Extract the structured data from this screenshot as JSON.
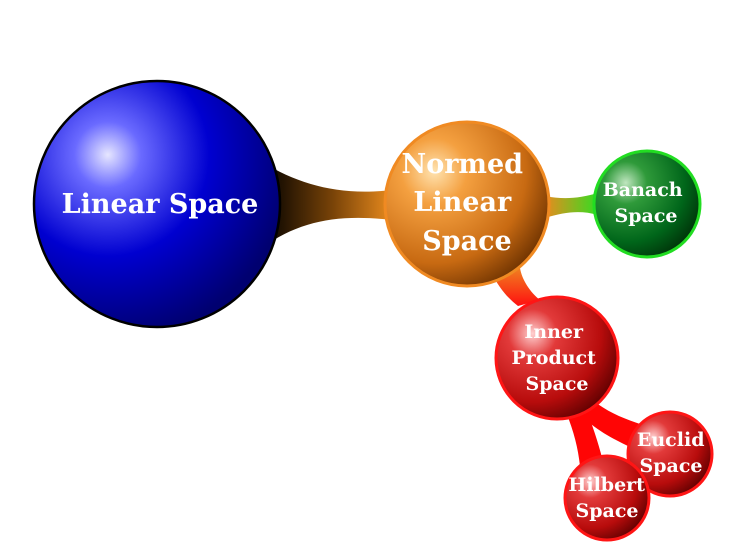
{
  "colors": {
    "linear": "#0000c8",
    "normed": "#e07a10",
    "banach": "#006b1f",
    "banach_ring": "#22dd22",
    "inner": "#cc1111",
    "connector_dark": "#1a1000",
    "connector_red": "#ff0000",
    "connector_green": "#55dd22"
  },
  "nodes": {
    "linear": {
      "lines": [
        "Linear Space"
      ]
    },
    "normed": {
      "lines": [
        "Normed",
        "Linear",
        "Space"
      ]
    },
    "banach": {
      "lines": [
        "Banach",
        "Space"
      ]
    },
    "inner": {
      "lines": [
        "Inner",
        "Product",
        "Space"
      ]
    },
    "euclid": {
      "lines": [
        "Euclid",
        "Space"
      ]
    },
    "hilbert": {
      "lines": [
        "Hilbert",
        "Space"
      ]
    }
  }
}
